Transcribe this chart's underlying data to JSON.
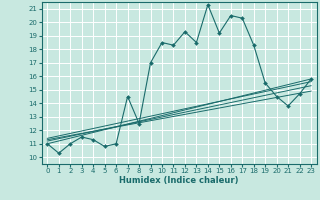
{
  "xlabel": "Humidex (Indice chaleur)",
  "bg_color": "#c8e8e0",
  "grid_color": "#ffffff",
  "line_color": "#1a6b6b",
  "xlim": [
    -0.5,
    23.5
  ],
  "ylim": [
    9.5,
    21.5
  ],
  "xticks": [
    0,
    1,
    2,
    3,
    4,
    5,
    6,
    7,
    8,
    9,
    10,
    11,
    12,
    13,
    14,
    15,
    16,
    17,
    18,
    19,
    20,
    21,
    22,
    23
  ],
  "yticks": [
    10,
    11,
    12,
    13,
    14,
    15,
    16,
    17,
    18,
    19,
    20,
    21
  ],
  "main_x": [
    0,
    1,
    2,
    3,
    4,
    5,
    6,
    7,
    8,
    9,
    10,
    11,
    12,
    13,
    14,
    15,
    16,
    17,
    18,
    19,
    20,
    21,
    22,
    23
  ],
  "main_y": [
    11.0,
    10.3,
    11.0,
    11.5,
    11.3,
    10.8,
    11.0,
    14.5,
    12.5,
    17.0,
    18.5,
    18.3,
    19.3,
    18.5,
    21.3,
    19.2,
    20.5,
    20.3,
    18.3,
    15.5,
    14.5,
    13.8,
    14.7,
    15.8
  ],
  "reg_lines": [
    {
      "x": [
        0,
        23
      ],
      "y": [
        11.0,
        15.8
      ]
    },
    {
      "x": [
        0,
        23
      ],
      "y": [
        11.2,
        15.3
      ]
    },
    {
      "x": [
        0,
        23
      ],
      "y": [
        11.3,
        14.9
      ]
    },
    {
      "x": [
        0,
        23
      ],
      "y": [
        11.4,
        15.6
      ]
    }
  ],
  "tick_fontsize": 5.0,
  "xlabel_fontsize": 6.0
}
